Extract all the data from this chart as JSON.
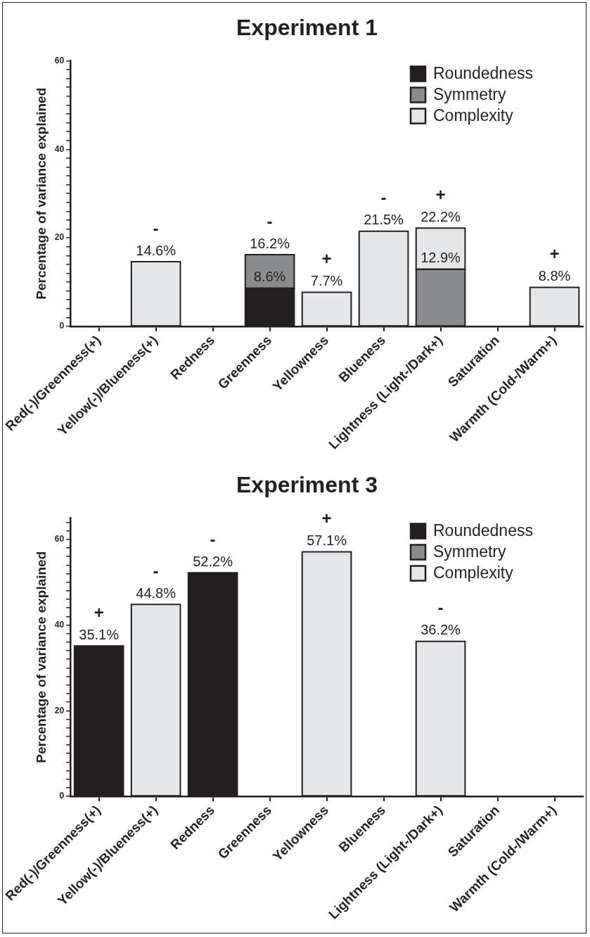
{
  "chart_data": [
    {
      "type": "bar",
      "title": "Experiment 1",
      "ylabel": "Percentage of variance explained",
      "stacked": true,
      "legend": "top right",
      "grid": false,
      "categories": [
        "Red(-)/Greenness(+)",
        "Yellow(-)/Blueness(+)",
        "Redness",
        "Greenness",
        "Yellowness",
        "Blueness",
        "Lightness (Light-/Dark+)",
        "Saturation",
        "Warmth (Cold-/Warm+)"
      ],
      "series": [
        {
          "name": "Roundedness",
          "color": "#231f20",
          "values": [
            null,
            null,
            null,
            8.6,
            null,
            null,
            null,
            null,
            null
          ],
          "value_labels": [
            null,
            null,
            null,
            "8.6%",
            null,
            null,
            null,
            null,
            null
          ]
        },
        {
          "name": "Symmetry",
          "color": "#8a8b8d",
          "values": [
            null,
            null,
            null,
            7.6,
            null,
            null,
            12.9,
            null,
            null
          ],
          "value_labels": [
            null,
            null,
            null,
            null,
            null,
            null,
            "12.9%",
            null,
            null
          ]
        },
        {
          "name": "Complexity",
          "color": "#e6e7e8",
          "values": [
            null,
            14.6,
            null,
            null,
            7.7,
            21.5,
            9.3,
            null,
            8.8
          ]
        }
      ],
      "totals": [
        null,
        "14.6%",
        null,
        "16.2%",
        "7.7%",
        "21.5%",
        "22.2%",
        null,
        "8.8%"
      ],
      "ylim": [
        0,
        60
      ],
      "yticks": [
        0,
        {
          "value": 2,
          "label": null
        },
        {
          "value": 4,
          "label": null
        },
        {
          "value": 6,
          "label": null
        },
        {
          "value": 8,
          "label": null
        },
        {
          "value": 10,
          "label": null
        },
        {
          "value": 12,
          "label": null
        },
        {
          "value": 14,
          "label": null
        },
        {
          "value": 16,
          "label": null
        },
        {
          "value": 18,
          "label": null
        },
        20,
        {
          "value": 22,
          "label": null
        },
        {
          "value": 24,
          "label": null
        },
        {
          "value": 26,
          "label": null
        },
        {
          "value": 28,
          "label": null
        },
        {
          "value": 30,
          "label": null
        },
        {
          "value": 32,
          "label": null
        },
        {
          "value": 34,
          "label": null
        },
        {
          "value": 36,
          "label": null
        },
        {
          "value": 38,
          "label": null
        },
        40,
        {
          "value": 42,
          "label": null
        },
        {
          "value": 44,
          "label": null
        },
        {
          "value": 46,
          "label": null
        },
        {
          "value": 48,
          "label": null
        },
        {
          "value": 50,
          "label": null
        },
        {
          "value": 52,
          "label": null
        },
        {
          "value": 54,
          "label": null
        },
        {
          "value": 56,
          "label": null
        },
        {
          "value": 58,
          "label": null
        },
        60
      ],
      "annotations": [
        {
          "text": "-",
          "x": "Yellow(-)/Blueness(+)",
          "y": 14.6
        },
        {
          "text": "-",
          "x": "Greenness",
          "y": 16.2
        },
        {
          "text": "+",
          "x": "Yellowness",
          "y": 7.7
        },
        {
          "text": "-",
          "x": "Blueness",
          "y": 21.5
        },
        {
          "text": "+",
          "x": "Lightness (Light-/Dark+)",
          "y": 22.2
        },
        {
          "text": "+",
          "x": "Warmth (Cold-/Warm+)",
          "y": 8.8
        }
      ]
    },
    {
      "type": "bar",
      "title": "Experiment 3",
      "ylabel": "Percentage of variance explained",
      "stacked": true,
      "legend": "top right",
      "grid": false,
      "categories": [
        "Red(-)/Greenness(+)",
        "Yellow(-)/Blueness(+)",
        "Redness",
        "Greenness",
        "Yellowness",
        "Blueness",
        "Lightness (Light-/Dark+)",
        "Saturation",
        "Warmth (Cold-/Warm+)"
      ],
      "series": [
        {
          "name": "Roundedness",
          "color": "#231f20",
          "values": [
            35.1,
            null,
            52.2,
            null,
            null,
            null,
            null,
            null,
            null
          ]
        },
        {
          "name": "Symmetry",
          "color": "#8a8b8d",
          "values": [
            null,
            null,
            null,
            null,
            null,
            null,
            null,
            null,
            null
          ]
        },
        {
          "name": "Complexity",
          "color": "#e6e7e8",
          "values": [
            null,
            44.8,
            null,
            null,
            57.1,
            null,
            36.2,
            null,
            null
          ]
        }
      ],
      "totals": [
        "35.1%",
        "44.8%",
        "52.2%",
        null,
        "57.1%",
        null,
        "36.2%",
        null,
        null
      ],
      "ylim": [
        0,
        65
      ],
      "yticks": [
        0,
        {
          "value": 2,
          "label": null
        },
        {
          "value": 4,
          "label": null
        },
        {
          "value": 6,
          "label": null
        },
        {
          "value": 8,
          "label": null
        },
        {
          "value": 10,
          "label": null
        },
        {
          "value": 12,
          "label": null
        },
        {
          "value": 14,
          "label": null
        },
        {
          "value": 16,
          "label": null
        },
        {
          "value": 18,
          "label": null
        },
        20,
        {
          "value": 22,
          "label": null
        },
        {
          "value": 24,
          "label": null
        },
        {
          "value": 26,
          "label": null
        },
        {
          "value": 28,
          "label": null
        },
        {
          "value": 30,
          "label": null
        },
        {
          "value": 32,
          "label": null
        },
        {
          "value": 34,
          "label": null
        },
        {
          "value": 36,
          "label": null
        },
        {
          "value": 38,
          "label": null
        },
        40,
        {
          "value": 42,
          "label": null
        },
        {
          "value": 44,
          "label": null
        },
        {
          "value": 46,
          "label": null
        },
        {
          "value": 48,
          "label": null
        },
        {
          "value": 50,
          "label": null
        },
        {
          "value": 52,
          "label": null
        },
        {
          "value": 54,
          "label": null
        },
        {
          "value": 56,
          "label": null
        },
        {
          "value": 58,
          "label": null
        },
        60,
        {
          "value": 62,
          "label": null
        },
        {
          "value": 64,
          "label": null
        }
      ],
      "annotations": [
        {
          "text": "+",
          "x": "Red(-)/Greenness(+)",
          "y": 35.1
        },
        {
          "text": "-",
          "x": "Yellow(-)/Blueness(+)",
          "y": 44.8
        },
        {
          "text": "-",
          "x": "Redness",
          "y": 52.2
        },
        {
          "text": "+",
          "x": "Yellowness",
          "y": 57.1
        },
        {
          "text": "-",
          "x": "Lightness (Light-/Dark+)",
          "y": 36.2
        }
      ]
    }
  ]
}
